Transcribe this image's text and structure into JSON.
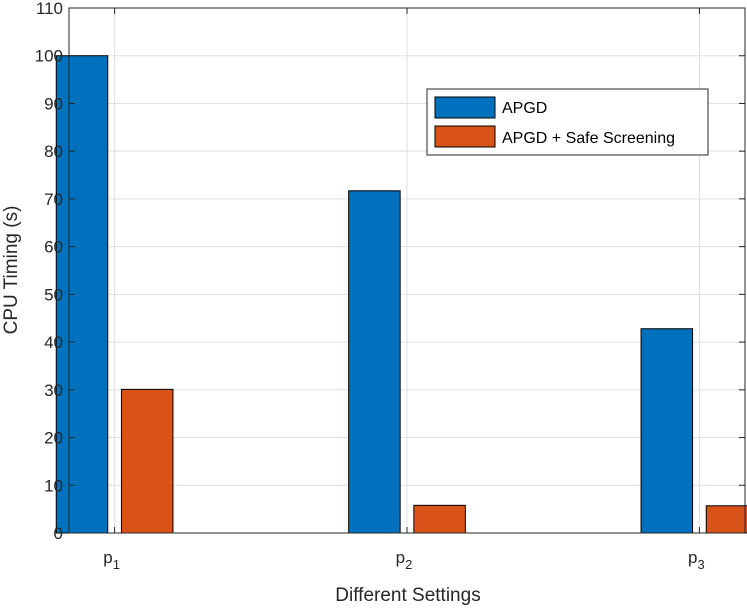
{
  "chart_data": {
    "type": "bar",
    "title": "",
    "xlabel": "Different Settings",
    "ylabel": "CPU Timing (s)",
    "categories": [
      {
        "base": "p",
        "sub": "1"
      },
      {
        "base": "p",
        "sub": "2"
      },
      {
        "base": "p",
        "sub": "3"
      }
    ],
    "series": [
      {
        "name": "APGD",
        "color": "#0072BD",
        "values": [
          100,
          71.7,
          42.8
        ]
      },
      {
        "name": "APGD + Safe Screening",
        "color": "#D95319",
        "values": [
          30.1,
          5.8,
          5.7
        ]
      }
    ],
    "ylim": [
      0,
      110
    ],
    "yticks": [
      0,
      10,
      20,
      30,
      40,
      50,
      60,
      70,
      80,
      90,
      100,
      110
    ],
    "grid": true,
    "legend_position": "top-right"
  }
}
